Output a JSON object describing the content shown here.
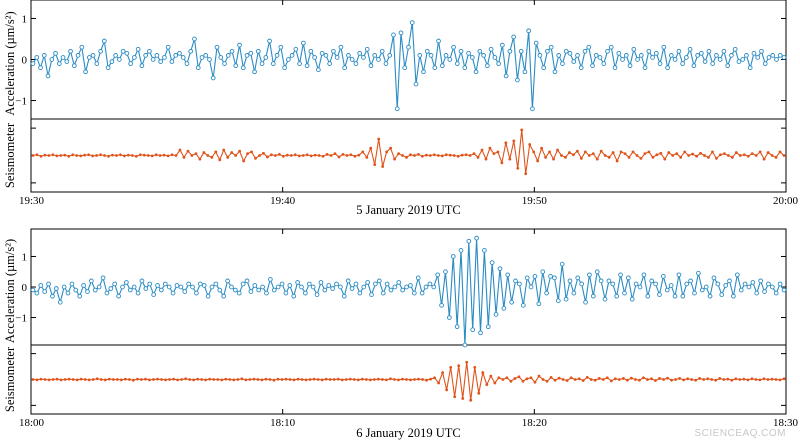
{
  "watermark": "SCIENCEAQ.COM",
  "colors": {
    "acceleration": "#2b8cc4",
    "seismometer": "#e0541b"
  },
  "chart_data": [
    {
      "type": "line",
      "caption": "5 January 2019 UTC",
      "x_tick_labels": [
        "19:30",
        "19:40",
        "19:50",
        "20:00"
      ],
      "acceleration": {
        "ylabel": "Acceleration (µm/s²)",
        "yticks": [
          "1",
          "0",
          "−1"
        ],
        "ylim": [
          -1.45,
          1.45
        ],
        "x_range_min": [
          0,
          30
        ],
        "values": [
          -0.1,
          0.05,
          -0.2,
          0.1,
          -0.4,
          0.0,
          0.15,
          -0.1,
          0.05,
          -0.05,
          0.2,
          -0.15,
          0.1,
          0.3,
          -0.3,
          0.05,
          0.1,
          -0.1,
          0.2,
          0.45,
          -0.2,
          -0.05,
          0.1,
          0.0,
          0.2,
          0.15,
          -0.1,
          0.05,
          0.25,
          -0.15,
          0.1,
          0.2,
          0.0,
          0.1,
          -0.05,
          0.05,
          0.3,
          -0.05,
          0.1,
          0.15,
          0.05,
          -0.1,
          0.2,
          0.5,
          -0.2,
          0.05,
          0.1,
          0.0,
          -0.45,
          0.3,
          0.05,
          -0.1,
          0.1,
          0.2,
          -0.15,
          0.35,
          -0.2,
          0.1,
          0.15,
          -0.3,
          0.2,
          -0.1,
          0.05,
          0.45,
          -0.1,
          0.1,
          0.3,
          -0.2,
          0.0,
          0.1,
          0.25,
          -0.1,
          0.4,
          -0.15,
          0.2,
          0.05,
          -0.25,
          0.15,
          0.1,
          -0.1,
          0.2,
          0.05,
          0.3,
          -0.2,
          0.1,
          0.0,
          -0.1,
          0.15,
          0.05,
          0.25,
          -0.15,
          0.1,
          0.0,
          0.2,
          -0.1,
          0.1,
          0.6,
          -1.2,
          0.65,
          -0.2,
          0.3,
          0.9,
          -0.6,
          0.1,
          -0.3,
          0.2,
          0.1,
          -0.2,
          0.45,
          -0.15,
          0.1,
          0.0,
          0.3,
          -0.1,
          0.2,
          -0.2,
          0.15,
          0.05,
          -0.3,
          0.2,
          0.1,
          -0.15,
          0.25,
          0.05,
          -0.1,
          0.35,
          -0.4,
          0.2,
          0.55,
          -0.5,
          0.2,
          -0.3,
          0.7,
          -1.2,
          0.4,
          0.1,
          -0.2,
          0.2,
          0.3,
          -0.3,
          0.1,
          -0.1,
          0.2,
          0.15,
          -0.05,
          0.1,
          -0.2,
          0.2,
          0.3,
          -0.15,
          0.1,
          0.05,
          -0.1,
          0.2,
          0.3,
          -0.2,
          0.15,
          0.0,
          0.1,
          -0.15,
          0.25,
          0.0,
          0.1,
          -0.2,
          0.2,
          0.05,
          0.15,
          -0.1,
          0.3,
          -0.2,
          0.1,
          0.0,
          0.2,
          -0.1,
          0.05,
          0.25,
          -0.15,
          0.1,
          0.15,
          -0.05,
          0.2,
          -0.1,
          0.1,
          0.0,
          0.2,
          -0.15,
          0.1,
          0.25,
          -0.05,
          0.0,
          0.1,
          -0.2,
          0.15,
          0.05,
          0.2,
          -0.1,
          0.05,
          0.1,
          0.0,
          0.1,
          0.05
        ]
      },
      "seismometer": {
        "ylabel": "Seismometer",
        "ylim": [
          -1,
          1
        ],
        "x_range_min": [
          0,
          30
        ],
        "values": [
          0.0,
          0.02,
          -0.02,
          0.01,
          0.0,
          0.02,
          -0.01,
          0.0,
          0.01,
          -0.02,
          0.02,
          0.0,
          -0.01,
          0.01,
          0.02,
          -0.01,
          0.0,
          0.02,
          0.0,
          -0.02,
          0.01,
          0.0,
          0.02,
          -0.01,
          0.01,
          0.0,
          -0.02,
          0.02,
          0.01,
          0.0,
          -0.01,
          0.02,
          0.0,
          0.01,
          -0.01,
          0.02,
          0.0,
          0.15,
          -0.05,
          0.12,
          0.0,
          0.05,
          -0.1,
          0.08,
          0.0,
          -0.05,
          0.1,
          -0.12,
          0.15,
          -0.05,
          0.08,
          0.0,
          0.12,
          -0.15,
          0.05,
          0.1,
          -0.08,
          0.0,
          0.06,
          -0.04,
          0.02,
          0.0,
          0.03,
          -0.02,
          0.01,
          0.0,
          0.02,
          -0.01,
          0.0,
          0.02,
          -0.01,
          0.01,
          0.0,
          -0.02,
          0.03,
          0.0,
          0.05,
          -0.04,
          0.03,
          0.0,
          0.02,
          -0.02,
          0.01,
          0.1,
          -0.05,
          0.2,
          -0.25,
          0.45,
          -0.3,
          0.1,
          0.2,
          -0.1,
          0.05,
          0.0,
          -0.05,
          0.02,
          0.0,
          0.03,
          -0.02,
          0.01,
          0.0,
          0.02,
          0.0,
          -0.01,
          0.02,
          0.01,
          0.0,
          -0.02,
          0.01,
          0.02,
          0.0,
          0.05,
          -0.05,
          0.15,
          -0.1,
          0.2,
          0.05,
          0.1,
          -0.2,
          0.35,
          -0.1,
          0.4,
          -0.35,
          0.7,
          -0.5,
          0.3,
          0.1,
          -0.15,
          0.2,
          -0.05,
          0.1,
          -0.1,
          0.15,
          0.0,
          -0.05,
          0.08,
          0.02,
          0.12,
          -0.08,
          0.1,
          0.0,
          0.05,
          -0.1,
          0.12,
          0.0,
          -0.05,
          0.08,
          -0.15,
          0.1,
          0.05,
          -0.05,
          0.1,
          0.0,
          -0.08,
          0.05,
          0.1,
          -0.05,
          0.02,
          0.06,
          -0.1,
          0.08,
          0.0,
          0.05,
          -0.05,
          0.1,
          0.0,
          0.04,
          -0.02,
          0.06,
          0.0,
          -0.05,
          0.1,
          -0.08,
          0.02,
          0.05,
          0.0,
          -0.05,
          0.08,
          0.0,
          0.02,
          -0.02,
          0.05,
          0.0,
          0.1,
          -0.1,
          0.08,
          0.0,
          -0.05,
          0.1,
          0.0
        ]
      }
    },
    {
      "type": "line",
      "caption": "6 January 2019 UTC",
      "x_tick_labels": [
        "18:00",
        "18:10",
        "18:20",
        "18:30"
      ],
      "acceleration": {
        "ylabel": "Acceleration (µm/s²)",
        "yticks": [
          "1",
          "0",
          "−1"
        ],
        "ylim": [
          -1.9,
          1.9
        ],
        "x_range_min": [
          0,
          30
        ],
        "values": [
          -0.1,
          -0.2,
          0.05,
          -0.15,
          0.1,
          -0.3,
          -0.05,
          -0.5,
          0.0,
          -0.2,
          0.1,
          -0.1,
          -0.3,
          0.05,
          -0.15,
          0.2,
          -0.1,
          0.0,
          0.3,
          -0.2,
          -0.05,
          0.1,
          -0.3,
          0.0,
          0.15,
          -0.1,
          0.0,
          -0.2,
          0.2,
          -0.05,
          0.1,
          -0.25,
          0.05,
          -0.1,
          0.1,
          0.0,
          -0.2,
          0.05,
          0.0,
          -0.15,
          0.1,
          0.0,
          -0.2,
          0.1,
          0.05,
          -0.3,
          0.0,
          0.1,
          -0.1,
          -0.3,
          0.2,
          0.0,
          -0.1,
          -0.2,
          0.1,
          0.2,
          -0.15,
          0.05,
          -0.1,
          0.0,
          -0.2,
          0.25,
          -0.1,
          0.0,
          0.1,
          -0.2,
          0.05,
          -0.3,
          0.15,
          0.0,
          -0.2,
          0.1,
          0.0,
          -0.25,
          0.15,
          -0.1,
          0.05,
          -0.05,
          0.1,
          0.0,
          -0.3,
          0.2,
          -0.05,
          0.1,
          -0.2,
          0.0,
          0.15,
          -0.25,
          0.1,
          0.2,
          -0.2,
          0.1,
          -0.1,
          0.0,
          0.15,
          -0.1,
          0.0,
          0.05,
          -0.2,
          0.3,
          -0.2,
          0.0,
          0.1,
          0.0,
          0.4,
          -0.6,
          0.5,
          -1.0,
          1.0,
          -1.3,
          1.2,
          -1.9,
          1.5,
          -1.4,
          1.6,
          -1.5,
          1.2,
          -1.3,
          0.8,
          -0.9,
          0.6,
          -0.7,
          0.4,
          -0.5,
          0.2,
          0.1,
          -0.6,
          0.3,
          0.0,
          0.35,
          -0.55,
          0.5,
          -0.2,
          0.35,
          0.3,
          -0.45,
          0.75,
          -0.4,
          0.2,
          -0.2,
          0.3,
          0.1,
          -0.5,
          0.4,
          -0.3,
          0.5,
          0.2,
          -0.4,
          0.2,
          0.1,
          -0.3,
          0.4,
          -0.2,
          0.3,
          -0.4,
          0.1,
          0.0,
          0.4,
          -0.3,
          0.2,
          0.1,
          -0.25,
          0.35,
          -0.1,
          0.05,
          -0.3,
          0.4,
          -0.3,
          0.1,
          0.2,
          -0.2,
          0.45,
          -0.1,
          0.0,
          -0.3,
          0.3,
          0.1,
          -0.25,
          0.05,
          0.2,
          -0.3,
          0.4,
          -0.1,
          0.1,
          0.0,
          0.15,
          -0.2,
          0.2,
          -0.15,
          0.1,
          0.0,
          -0.2,
          0.1,
          -0.1
        ]
      },
      "seismometer": {
        "ylabel": "Seismometer",
        "ylim": [
          -1,
          1
        ],
        "x_range_min": [
          0,
          30
        ],
        "values": [
          0.0,
          -0.01,
          0.01,
          0.0,
          -0.01,
          0.0,
          0.01,
          -0.01,
          0.0,
          0.01,
          0.0,
          -0.01,
          0.01,
          0.0,
          -0.01,
          0.0,
          0.02,
          0.0,
          -0.01,
          0.01,
          0.0,
          0.0,
          -0.01,
          0.01,
          0.0,
          -0.02,
          0.01,
          0.0,
          0.01,
          -0.01,
          0.0,
          0.01,
          0.0,
          -0.01,
          0.0,
          0.01,
          -0.01,
          0.0,
          0.02,
          0.0,
          -0.01,
          0.01,
          0.0,
          -0.01,
          0.01,
          0.0,
          0.0,
          -0.01,
          0.01,
          0.0,
          -0.01,
          0.0,
          0.02,
          -0.01,
          0.0,
          0.01,
          0.0,
          -0.01,
          0.01,
          0.0,
          -0.02,
          0.01,
          0.0,
          0.01,
          0.0,
          -0.01,
          0.01,
          0.0,
          -0.01,
          0.0,
          0.01,
          0.0,
          -0.01,
          0.01,
          0.0,
          0.0,
          0.01,
          -0.01,
          0.0,
          0.01,
          0.0,
          -0.01,
          0.01,
          0.0,
          -0.01,
          0.0,
          0.01,
          0.0,
          -0.01,
          0.02,
          0.0,
          -0.01,
          0.01,
          0.0,
          -0.01,
          0.0,
          0.01,
          0.0,
          -0.02,
          0.01,
          0.05,
          -0.1,
          0.2,
          -0.3,
          0.35,
          -0.5,
          0.4,
          -0.55,
          0.5,
          -0.6,
          0.35,
          -0.4,
          0.2,
          -0.15,
          0.1,
          -0.1,
          0.05,
          0.0,
          0.05,
          -0.05,
          0.03,
          0.08,
          -0.05,
          0.02,
          0.05,
          -0.08,
          0.1,
          0.0,
          -0.05,
          0.06,
          -0.02,
          0.04,
          0.0,
          -0.03,
          0.05,
          0.0,
          0.02,
          -0.03,
          0.06,
          0.0,
          -0.02,
          0.03,
          0.0,
          0.05,
          -0.04,
          0.02,
          0.0,
          0.03,
          -0.02,
          0.04,
          0.0,
          -0.02,
          0.05,
          0.0,
          0.02,
          -0.03,
          0.03,
          0.0,
          0.04,
          -0.02,
          0.0,
          0.03,
          -0.01,
          0.02,
          0.0,
          -0.02,
          0.03,
          0.0,
          0.02,
          0.0,
          -0.02,
          0.03,
          0.0,
          0.01,
          -0.02,
          0.02,
          0.0,
          0.01,
          -0.01,
          0.02,
          0.0,
          -0.01,
          0.02,
          0.0,
          0.01,
          0.0,
          -0.01,
          0.02
        ]
      }
    }
  ]
}
